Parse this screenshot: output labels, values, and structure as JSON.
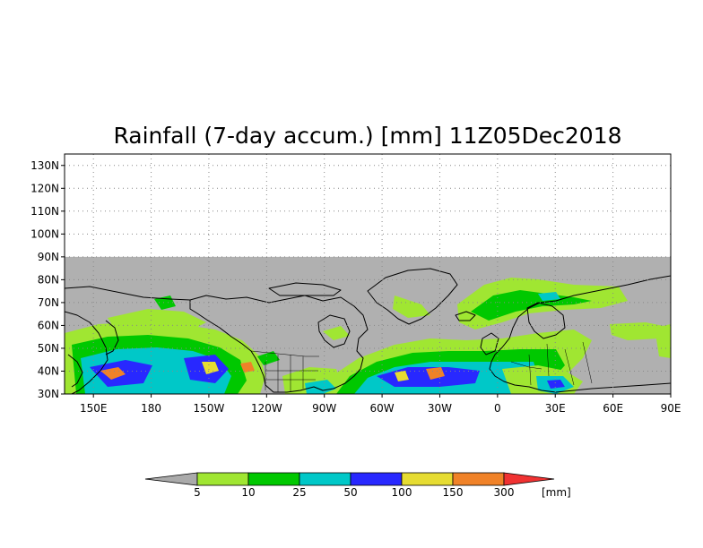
{
  "title": "Rainfall (7-day accum.) [mm] 11Z05Dec2018",
  "map": {
    "lat_range": [
      30,
      135
    ],
    "lon_range": [
      135,
      450
    ],
    "data_lat_top": 90,
    "ocean_color": "#ffffff",
    "no_data_color": "#b0b0b0",
    "lat_ticks": [
      {
        "value": 30,
        "label": "30N"
      },
      {
        "value": 40,
        "label": "40N"
      },
      {
        "value": 50,
        "label": "50N"
      },
      {
        "value": 60,
        "label": "60N"
      },
      {
        "value": 70,
        "label": "70N"
      },
      {
        "value": 80,
        "label": "80N"
      },
      {
        "value": 90,
        "label": "90N"
      },
      {
        "value": 100,
        "label": "100N"
      },
      {
        "value": 110,
        "label": "110N"
      },
      {
        "value": 120,
        "label": "120N"
      },
      {
        "value": 130,
        "label": "130N"
      }
    ],
    "lon_ticks": [
      {
        "value": 150,
        "label": "150E"
      },
      {
        "value": 180,
        "label": "180"
      },
      {
        "value": 210,
        "label": "150W"
      },
      {
        "value": 240,
        "label": "120W"
      },
      {
        "value": 270,
        "label": "90W"
      },
      {
        "value": 300,
        "label": "60W"
      },
      {
        "value": 330,
        "label": "30W"
      },
      {
        "value": 360,
        "label": "0"
      },
      {
        "value": 390,
        "label": "30E"
      },
      {
        "value": 420,
        "label": "60E"
      },
      {
        "value": 450,
        "label": "90E"
      }
    ]
  },
  "colorbar": {
    "unit_label": "[mm]",
    "levels": [
      "5",
      "10",
      "25",
      "50",
      "100",
      "150",
      "300"
    ],
    "colors": [
      "#aaaaaa",
      "#a0e632",
      "#00c800",
      "#00c8c8",
      "#2828ff",
      "#e6dc32",
      "#f08228",
      "#f03232"
    ]
  }
}
